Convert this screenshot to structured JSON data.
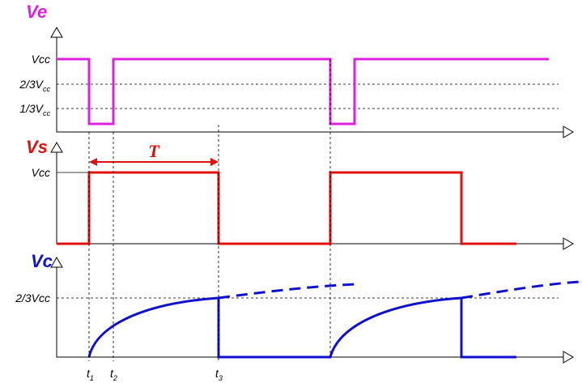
{
  "panels": [
    {
      "label": "Ve",
      "levels": [
        {
          "text": "Vcc"
        },
        {
          "text": "2/3V",
          "sub": "cc"
        },
        {
          "text": "1/3V",
          "sub": "cc"
        }
      ]
    },
    {
      "label": "Vs",
      "levels": [
        {
          "text": "Vcc"
        }
      ]
    },
    {
      "label": "Vc",
      "levels": [
        {
          "text": "2/3Vcc"
        }
      ]
    }
  ],
  "period_label": "T",
  "time_labels": [
    {
      "text": "t",
      "sub": "1"
    },
    {
      "text": "t",
      "sub": "2"
    },
    {
      "text": "t",
      "sub": "3"
    }
  ]
}
